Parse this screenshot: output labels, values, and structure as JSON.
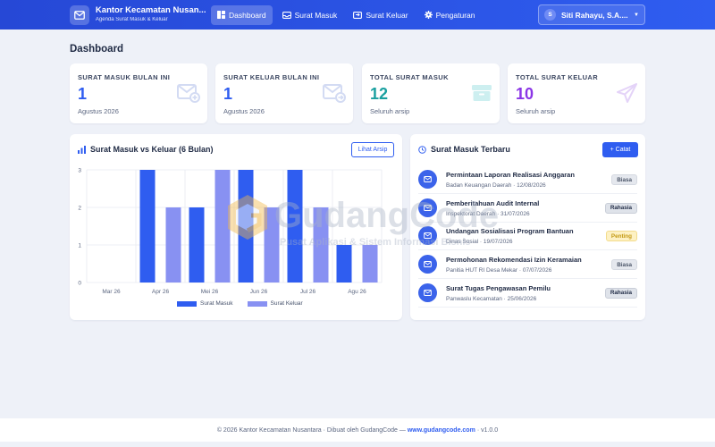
{
  "app": {
    "title": "Kantor Kecamatan Nusan...",
    "subtitle": "Agenda Surat Masuk & Keluar"
  },
  "nav": {
    "items": [
      {
        "label": "Dashboard",
        "icon": "grid-icon",
        "active": true
      },
      {
        "label": "Surat Masuk",
        "icon": "inbox-icon",
        "active": false
      },
      {
        "label": "Surat Keluar",
        "icon": "outbox-icon",
        "active": false
      },
      {
        "label": "Pengaturan",
        "icon": "gear-icon",
        "active": false
      }
    ]
  },
  "user": {
    "initial": "S",
    "name": "Siti Rahayu, S.A...."
  },
  "page": {
    "title": "Dashboard"
  },
  "stats": [
    {
      "label": "SURAT MASUK BULAN INI",
      "value": "1",
      "sub": "Agustus 2026",
      "color": "#2f5df0",
      "icon": "mail-in-icon"
    },
    {
      "label": "SURAT KELUAR BULAN INI",
      "value": "1",
      "sub": "Agustus 2026",
      "color": "#2f5df0",
      "icon": "mail-out-icon"
    },
    {
      "label": "TOTAL SURAT MASUK",
      "value": "12",
      "sub": "Seluruh arsip",
      "color": "#1aa0a0",
      "icon": "archive-icon"
    },
    {
      "label": "TOTAL SURAT KELUAR",
      "value": "10",
      "sub": "Seluruh arsip",
      "color": "#8b35e6",
      "icon": "send-icon"
    }
  ],
  "chart_panel": {
    "title": "Surat Masuk vs Keluar (6 Bulan)",
    "button": "Lihat Arsip"
  },
  "chart_data": {
    "type": "bar",
    "title": "Surat Masuk vs Keluar (6 Bulan)",
    "categories": [
      "Mar 26",
      "Apr 26",
      "Mei 26",
      "Jun 26",
      "Jul 26",
      "Agu 26"
    ],
    "series": [
      {
        "name": "Surat Masuk",
        "values": [
          0,
          3,
          2,
          3,
          3,
          1
        ],
        "color": "#2f5df0"
      },
      {
        "name": "Surat Keluar",
        "values": [
          0,
          2,
          3,
          2,
          2,
          1
        ],
        "color": "#8891f2"
      }
    ],
    "ylim": [
      0,
      3
    ],
    "yticks": [
      "0",
      "1",
      "2",
      "3"
    ],
    "grid": true,
    "legend": "bottom"
  },
  "list_panel": {
    "title": "Surat Masuk Terbaru",
    "button": "+ Catat",
    "items": [
      {
        "title": "Permintaan Laporan Realisasi Anggaran",
        "meta": "Badan Keuangan Daerah · 12/08/2026",
        "badge": "Biasa",
        "badge_type": "biasa"
      },
      {
        "title": "Pemberitahuan Audit Internal",
        "meta": "Inspektorat Daerah · 31/07/2026",
        "badge": "Rahasia",
        "badge_type": "rahasia"
      },
      {
        "title": "Undangan Sosialisasi Program Bantuan",
        "meta": "Dinas Sosial · 19/07/2026",
        "badge": "Penting",
        "badge_type": "penting"
      },
      {
        "title": "Permohonan Rekomendasi Izin Keramaian",
        "meta": "Panitia HUT RI Desa Mekar · 07/07/2026",
        "badge": "Biasa",
        "badge_type": "biasa"
      },
      {
        "title": "Surat Tugas Pengawasan Pemilu",
        "meta": "Panwaslu Kecamatan · 25/06/2026",
        "badge": "Rahasia",
        "badge_type": "rahasia"
      }
    ]
  },
  "footer": {
    "text": "© 2026 Kantor Kecamatan Nusantara · Dibuat oleh GudangCode —",
    "link": "www.gudangcode.com",
    "version": "· v1.0.0"
  },
  "watermark": {
    "brand": "GudangCode",
    "tagline": "Pusat Aplikasi & Sistem Informasi Bisnis"
  }
}
